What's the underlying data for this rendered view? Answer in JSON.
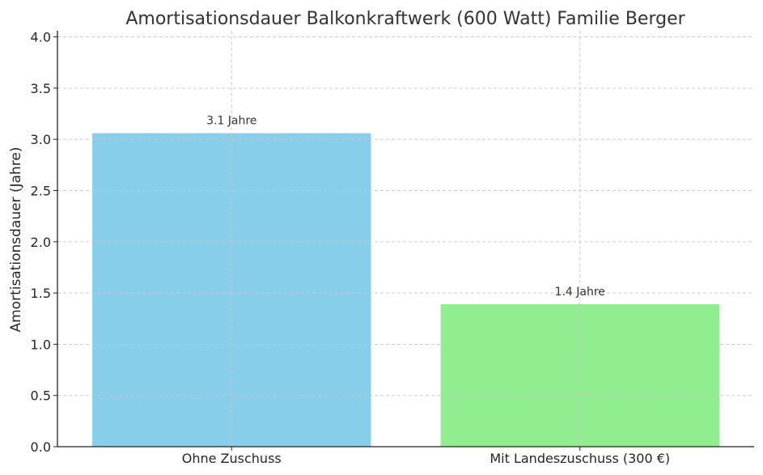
{
  "chart_data": {
    "type": "bar",
    "title": "Amortisationsdauer Balkonkraftwerk (600 Watt) Familie Berger",
    "xlabel": "",
    "ylabel": "Amortisationsdauer (Jahre)",
    "categories": [
      "Ohne Zuschuss",
      "Mit Landeszuschuss (300 €)"
    ],
    "values": [
      3.06,
      1.39
    ],
    "data_labels": [
      "3.1 Jahre",
      "1.4 Jahre"
    ],
    "colors": [
      "#87ceeb",
      "#90ee90"
    ],
    "ylim": [
      0,
      4.06
    ],
    "yticks": [
      "0.0",
      "0.5",
      "1.0",
      "1.5",
      "2.0",
      "2.5",
      "3.0",
      "3.5",
      "4.0"
    ],
    "grid": true
  }
}
